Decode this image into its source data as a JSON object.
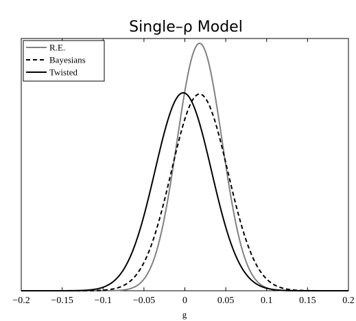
{
  "chart_data": {
    "type": "line",
    "title": "Single–ρ Model",
    "xlabel": "g",
    "ylabel": "",
    "xlim": [
      -0.2,
      0.2
    ],
    "ylim": [
      0,
      1.0
    ],
    "x_ticks": [
      -0.2,
      -0.15,
      -0.1,
      -0.05,
      0,
      0.05,
      0.1,
      0.15,
      0.2
    ],
    "x_tick_labels": [
      "−0.2",
      "−0.15",
      "−0.1",
      "−0.05",
      "0",
      "0.05",
      "0.1",
      "0.15",
      "0.2"
    ],
    "y_ticks": [],
    "grid": false,
    "legend": "top-left",
    "series": [
      {
        "name": "R.E.",
        "color": "#808080",
        "style": "solid",
        "mean": 0.018,
        "sd": 0.0275,
        "peak": 1.0
      },
      {
        "name": "Bayesians",
        "color": "#000000",
        "style": "dashed",
        "mean": 0.018,
        "sd": 0.0345,
        "peak": 0.795
      },
      {
        "name": "Twisted",
        "color": "#000000",
        "style": "solid",
        "mean": -0.002,
        "sd": 0.0345,
        "peak": 0.8
      }
    ]
  }
}
